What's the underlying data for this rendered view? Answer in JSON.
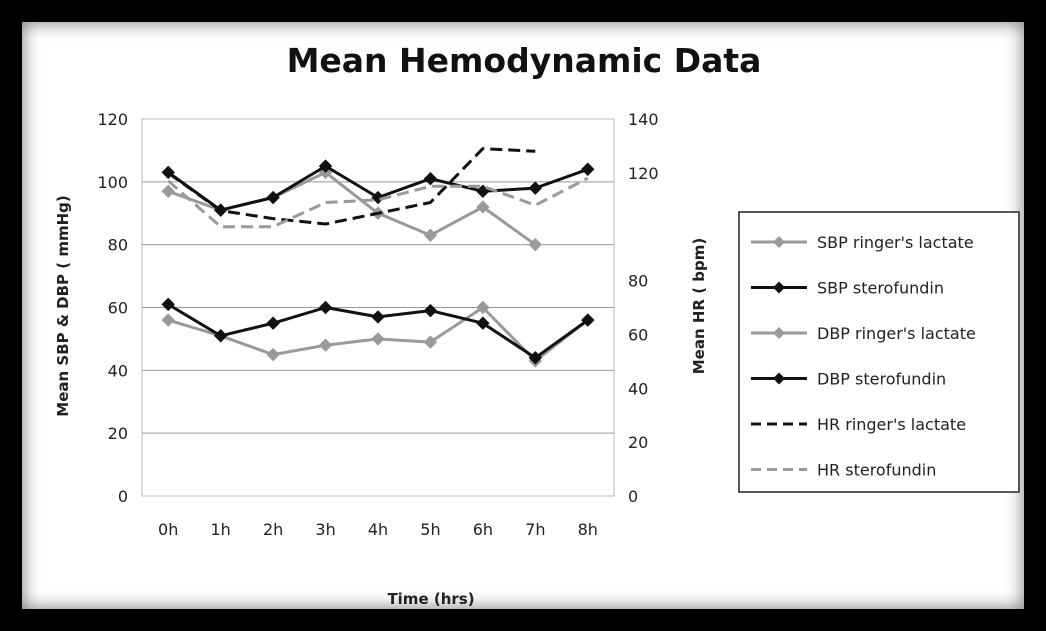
{
  "chart_data": {
    "type": "line",
    "title": "Mean Hemodynamic Data",
    "xlabel": "Time (hrs)",
    "ylabel": "Mean SBP & DBP ( mmHg)",
    "y2label": "Mean HR ( bpm)",
    "categories": [
      "0h",
      "1h",
      "2h",
      "3h",
      "4h",
      "5h",
      "6h",
      "7h",
      "8h"
    ],
    "ylim": [
      0,
      120
    ],
    "yticks": [
      "0",
      "20",
      "40",
      "60",
      "80",
      "100",
      "120"
    ],
    "y2lim": [
      0,
      140
    ],
    "y2ticks": [
      "0",
      "20",
      "40",
      "60",
      "80",
      "120",
      "140"
    ],
    "grid": true,
    "legend_position": "right",
    "series": [
      {
        "name": "SBP ringer's lactate",
        "axis": "left",
        "style": "solid-marker",
        "color": "#9a9a9a",
        "values": [
          97,
          91,
          95,
          103,
          90,
          83,
          92,
          80,
          null
        ]
      },
      {
        "name": "SBP sterofundin",
        "axis": "left",
        "style": "solid-marker",
        "color": "#111111",
        "values": [
          103,
          91,
          95,
          105,
          95,
          101,
          97,
          98,
          104
        ]
      },
      {
        "name": "DBP ringer's lactate",
        "axis": "left",
        "style": "solid-marker",
        "color": "#9a9a9a",
        "values": [
          56,
          51,
          45,
          48,
          50,
          49,
          60,
          43,
          56
        ]
      },
      {
        "name": "DBP sterofundin",
        "axis": "left",
        "style": "solid-marker",
        "color": "#111111",
        "values": [
          61,
          51,
          55,
          60,
          57,
          59,
          55,
          44,
          56
        ]
      },
      {
        "name": "HR ringer's lactate",
        "axis": "right",
        "style": "dashed",
        "color": "#111111",
        "values": [
          120,
          106,
          103,
          101,
          105,
          109,
          129,
          128,
          null
        ]
      },
      {
        "name": "HR sterofundin",
        "axis": "right",
        "style": "dashed",
        "color": "#9a9a9a",
        "values": [
          117,
          100,
          100,
          109,
          110,
          115,
          115,
          108,
          118
        ]
      }
    ]
  }
}
